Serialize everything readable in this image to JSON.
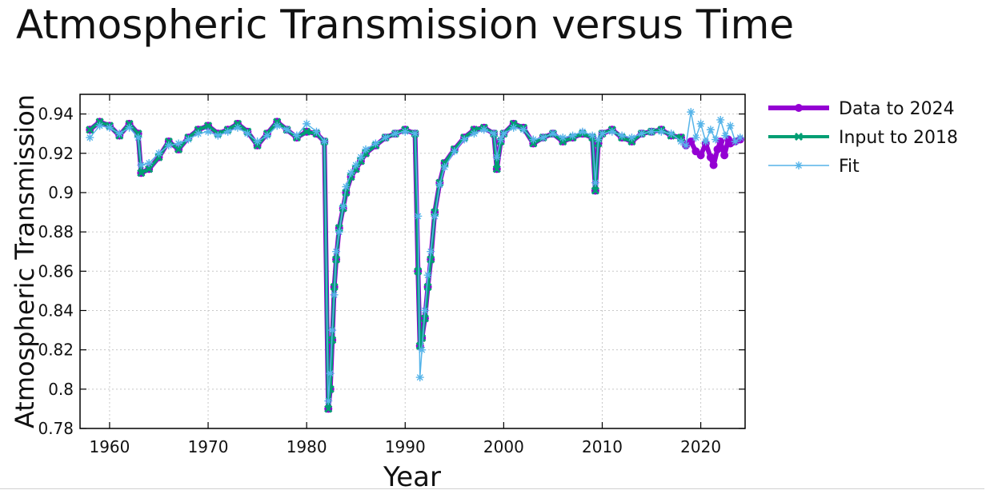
{
  "colors": {
    "data": "#9400d3",
    "input": "#009e73",
    "fit": "#56b4e9"
  },
  "chart_data": {
    "type": "line",
    "title": "Atmospheric Transmission versus Time",
    "xlabel": "Year",
    "ylabel": "Atmospheric Transmission",
    "xlim": [
      1957,
      2024.5
    ],
    "ylim": [
      0.78,
      0.95
    ],
    "xticks": [
      1960,
      1970,
      1980,
      1990,
      2000,
      2010,
      2020
    ],
    "yticks": [
      0.78,
      0.8,
      0.82,
      0.84,
      0.86,
      0.88,
      0.9,
      0.92,
      0.94
    ],
    "xtick_labels": [
      "1960",
      "1970",
      "1980",
      "1990",
      "2000",
      "2010",
      "2020"
    ],
    "ytick_labels": [
      "0.78",
      "0.8",
      "0.82",
      "0.84",
      "0.86",
      "0.88",
      "0.9",
      "0.92",
      "0.94"
    ],
    "grid": true,
    "legend_position": "outside-top-right",
    "series": [
      {
        "name": "Data to 2024",
        "marker": "circle",
        "x": [
          1958,
          1959,
          1960,
          1961,
          1962,
          1962.9,
          1963.2,
          1964,
          1965,
          1966,
          1967,
          1968,
          1969,
          1970,
          1971,
          1972,
          1973,
          1974,
          1975,
          1976,
          1977,
          1978,
          1979,
          1980,
          1981,
          1981.8,
          1982.2,
          1982.4,
          1982.6,
          1982.8,
          1983,
          1983.3,
          1983.7,
          1984,
          1984.5,
          1985,
          1985.5,
          1986,
          1987,
          1988,
          1989,
          1990,
          1991,
          1991.3,
          1991.5,
          1991.7,
          1992,
          1992.3,
          1992.6,
          1993,
          1993.5,
          1994,
          1995,
          1996,
          1997,
          1998,
          1999,
          1999.3,
          1999.7,
          2000,
          2001,
          2002,
          2003,
          2004,
          2005,
          2006,
          2007,
          2008,
          2009,
          2009.3,
          2009.6,
          2010,
          2011,
          2012,
          2013,
          2014,
          2015,
          2016,
          2017,
          2018,
          2018.5,
          2019,
          2019.5,
          2020,
          2020.5,
          2021,
          2021.3,
          2021.7,
          2022,
          2022.4,
          2022.8,
          2023,
          2023.5,
          2024
        ],
        "y": [
          0.932,
          0.936,
          0.934,
          0.929,
          0.935,
          0.93,
          0.91,
          0.912,
          0.918,
          0.926,
          0.922,
          0.928,
          0.932,
          0.934,
          0.93,
          0.932,
          0.935,
          0.931,
          0.924,
          0.93,
          0.936,
          0.932,
          0.928,
          0.931,
          0.93,
          0.926,
          0.79,
          0.8,
          0.825,
          0.852,
          0.866,
          0.882,
          0.892,
          0.9,
          0.908,
          0.912,
          0.916,
          0.92,
          0.924,
          0.928,
          0.93,
          0.932,
          0.93,
          0.86,
          0.822,
          0.826,
          0.836,
          0.852,
          0.866,
          0.89,
          0.905,
          0.915,
          0.922,
          0.928,
          0.932,
          0.933,
          0.93,
          0.912,
          0.926,
          0.93,
          0.935,
          0.933,
          0.925,
          0.928,
          0.93,
          0.926,
          0.928,
          0.93,
          0.928,
          0.901,
          0.925,
          0.93,
          0.932,
          0.928,
          0.926,
          0.93,
          0.931,
          0.932,
          0.929,
          0.928,
          0.924,
          0.926,
          0.921,
          0.919,
          0.925,
          0.918,
          0.914,
          0.922,
          0.926,
          0.919,
          0.927,
          0.925,
          0.926,
          0.927
        ]
      },
      {
        "name": "Input to 2018",
        "marker": "x",
        "x": [
          1958,
          1959,
          1960,
          1961,
          1962,
          1962.9,
          1963.2,
          1964,
          1965,
          1966,
          1967,
          1968,
          1969,
          1970,
          1971,
          1972,
          1973,
          1974,
          1975,
          1976,
          1977,
          1978,
          1979,
          1980,
          1981,
          1981.8,
          1982.2,
          1982.4,
          1982.6,
          1982.8,
          1983,
          1983.3,
          1983.7,
          1984,
          1984.5,
          1985,
          1985.5,
          1986,
          1987,
          1988,
          1989,
          1990,
          1991,
          1991.3,
          1991.5,
          1991.7,
          1992,
          1992.3,
          1992.6,
          1993,
          1993.5,
          1994,
          1995,
          1996,
          1997,
          1998,
          1999,
          1999.3,
          1999.7,
          2000,
          2001,
          2002,
          2003,
          2004,
          2005,
          2006,
          2007,
          2008,
          2009,
          2009.3,
          2009.6,
          2010,
          2011,
          2012,
          2013,
          2014,
          2015,
          2016,
          2017,
          2018
        ],
        "y": [
          0.932,
          0.936,
          0.934,
          0.929,
          0.935,
          0.93,
          0.91,
          0.912,
          0.918,
          0.926,
          0.922,
          0.928,
          0.932,
          0.934,
          0.93,
          0.932,
          0.935,
          0.931,
          0.924,
          0.93,
          0.936,
          0.932,
          0.928,
          0.931,
          0.93,
          0.926,
          0.79,
          0.8,
          0.825,
          0.852,
          0.866,
          0.882,
          0.892,
          0.9,
          0.908,
          0.912,
          0.916,
          0.92,
          0.924,
          0.928,
          0.93,
          0.932,
          0.93,
          0.86,
          0.822,
          0.826,
          0.836,
          0.852,
          0.866,
          0.89,
          0.905,
          0.915,
          0.922,
          0.928,
          0.932,
          0.933,
          0.93,
          0.912,
          0.926,
          0.93,
          0.935,
          0.933,
          0.925,
          0.928,
          0.93,
          0.926,
          0.928,
          0.93,
          0.928,
          0.901,
          0.925,
          0.93,
          0.932,
          0.928,
          0.926,
          0.93,
          0.931,
          0.932,
          0.929,
          0.928
        ]
      },
      {
        "name": "Fit",
        "marker": "asterisk",
        "x": [
          1958,
          1959,
          1960,
          1961,
          1962,
          1962.9,
          1963.2,
          1964,
          1965,
          1966,
          1967,
          1968,
          1969,
          1970,
          1971,
          1972,
          1973,
          1974,
          1975,
          1976,
          1977,
          1978,
          1979,
          1980,
          1981,
          1981.8,
          1982.2,
          1982.4,
          1982.6,
          1982.8,
          1983,
          1983.3,
          1983.7,
          1984,
          1984.5,
          1985,
          1985.5,
          1986,
          1987,
          1988,
          1989,
          1990,
          1991,
          1991.3,
          1991.5,
          1991.7,
          1992,
          1992.3,
          1992.6,
          1993,
          1993.5,
          1994,
          1995,
          1996,
          1997,
          1998,
          1999,
          1999.3,
          1999.7,
          2000,
          2001,
          2002,
          2003,
          2004,
          2005,
          2006,
          2007,
          2008,
          2009,
          2009.3,
          2009.6,
          2010,
          2011,
          2012,
          2013,
          2014,
          2015,
          2016,
          2017,
          2018,
          2018.5,
          2019,
          2019.5,
          2020,
          2020.5,
          2021,
          2021.5,
          2022,
          2022.5,
          2023,
          2023.5,
          2024
        ],
        "y": [
          0.928,
          0.934,
          0.933,
          0.93,
          0.933,
          0.928,
          0.914,
          0.915,
          0.92,
          0.924,
          0.925,
          0.927,
          0.93,
          0.931,
          0.929,
          0.931,
          0.933,
          0.93,
          0.926,
          0.929,
          0.934,
          0.932,
          0.929,
          0.935,
          0.931,
          0.926,
          0.794,
          0.808,
          0.83,
          0.848,
          0.87,
          0.88,
          0.893,
          0.903,
          0.91,
          0.914,
          0.918,
          0.922,
          0.925,
          0.928,
          0.93,
          0.931,
          0.93,
          0.888,
          0.806,
          0.82,
          0.84,
          0.858,
          0.87,
          0.888,
          0.904,
          0.913,
          0.921,
          0.927,
          0.93,
          0.932,
          0.93,
          0.918,
          0.927,
          0.93,
          0.933,
          0.932,
          0.927,
          0.928,
          0.93,
          0.928,
          0.929,
          0.931,
          0.929,
          0.905,
          0.927,
          0.93,
          0.931,
          0.929,
          0.928,
          0.93,
          0.931,
          0.931,
          0.93,
          0.926,
          0.924,
          0.941,
          0.928,
          0.935,
          0.926,
          0.932,
          0.927,
          0.937,
          0.929,
          0.934,
          0.926,
          0.928
        ]
      }
    ]
  }
}
